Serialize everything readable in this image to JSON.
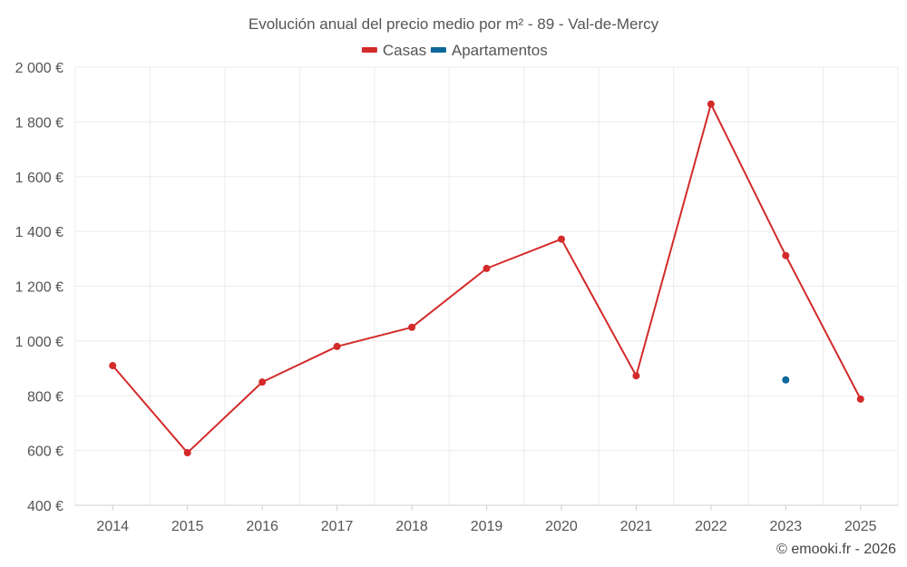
{
  "chart_data": {
    "type": "line",
    "title": "Evolución anual del precio medio por m² - 89 - Val-de-Mercy",
    "categories": [
      "2014",
      "2015",
      "2016",
      "2017",
      "2018",
      "2019",
      "2020",
      "2021",
      "2022",
      "2023",
      "2025"
    ],
    "series": [
      {
        "name": "Casas",
        "color": "#d32a2a",
        "values": [
          910,
          592,
          850,
          980,
          1050,
          1265,
          1372,
          873,
          1865,
          1312,
          788
        ]
      },
      {
        "name": "Apartamentos",
        "color": "#0e6799",
        "values": [
          null,
          null,
          null,
          null,
          null,
          null,
          null,
          null,
          null,
          858,
          null
        ]
      }
    ],
    "ylim": [
      400,
      2000
    ],
    "yticks": [
      400,
      600,
      800,
      1000,
      1200,
      1400,
      1600,
      1800,
      2000
    ],
    "ytick_labels": [
      "400 €",
      "600 €",
      "800 €",
      "1 000 €",
      "1 200 €",
      "1 400 €",
      "1 600 €",
      "1 800 €",
      "2 000 €"
    ],
    "grid": true,
    "legend_position": "top-center",
    "xlabel": "",
    "ylabel": ""
  },
  "credit": "© emooki.fr - 2026"
}
